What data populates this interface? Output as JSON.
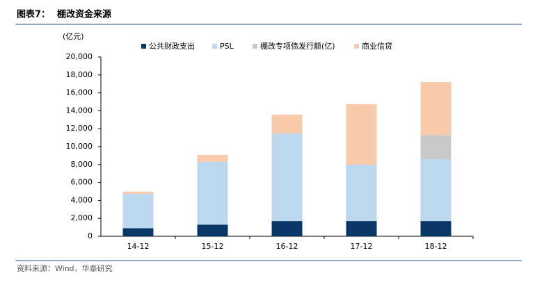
{
  "chart_data": {
    "type": "stacked_bar",
    "figure_label": "图表7：",
    "title": "棚改资金来源",
    "y_unit": "(亿元)",
    "source": "资料来源：Wind，华泰研究",
    "categories": [
      "14-12",
      "15-12",
      "16-12",
      "17-12",
      "18-12"
    ],
    "series": [
      {
        "name": "公共财政支出",
        "color": "#0c3867",
        "values": [
          900,
          1300,
          1700,
          1700,
          1700
        ]
      },
      {
        "name": "PSL",
        "color": "#bdd7ee",
        "values": [
          3830,
          7000,
          9770,
          6280,
          6900
        ]
      },
      {
        "name": "棚改专项债发行额(亿)",
        "color": "#c9c9c9",
        "values": [
          null,
          null,
          null,
          null,
          2700
        ]
      },
      {
        "name": "商业信贷",
        "color": "#f8cbad",
        "values": [
          250,
          770,
          2100,
          6750,
          5900
        ]
      }
    ],
    "ylim": [
      0,
      20000
    ],
    "yticks": [
      0,
      {
        "value": 2000,
        "label": "2,000"
      },
      {
        "value": 4000,
        "label": "4,000"
      },
      {
        "value": 6000,
        "label": "6,000"
      },
      {
        "value": 8000,
        "label": "8,000"
      },
      {
        "value": 10000,
        "label": "10,000"
      },
      {
        "value": 12000,
        "label": "12,000"
      },
      {
        "value": 14000,
        "label": "14,000"
      },
      {
        "value": 16000,
        "label": "16,000"
      },
      {
        "value": 18000,
        "label": "18,000"
      },
      {
        "value": 20000,
        "label": "20,000"
      }
    ],
    "grid": false
  }
}
